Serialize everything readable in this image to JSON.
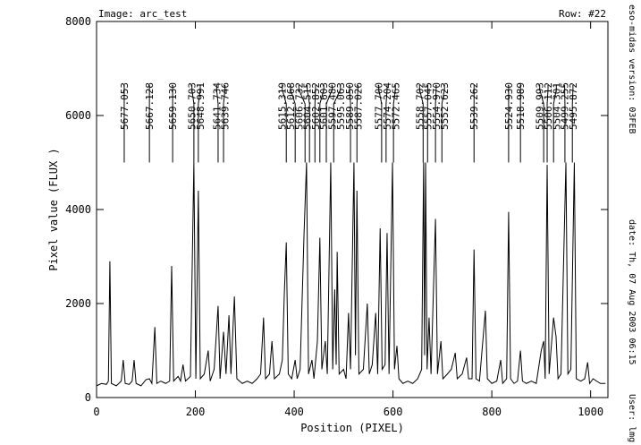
{
  "chart_data": {
    "type": "line",
    "image_label": "Image: arc_test",
    "row_label": "Row: #22",
    "xlabel": "Position (PIXEL)",
    "ylabel": "Pixel value (FLUX )",
    "side_texts": [
      "eso-midas version: 03FEB",
      "date: Th, 07 Aug 2003 06:15",
      "User: lmg"
    ],
    "color": "#000000",
    "xlim": [
      0,
      1035
    ],
    "ylim": [
      0,
      8000
    ],
    "xticks": [
      0,
      200,
      400,
      600,
      800,
      1000
    ],
    "yticks": [
      0,
      2000,
      4000,
      6000,
      8000
    ],
    "x": [
      0,
      10,
      20,
      24,
      27,
      30,
      40,
      50,
      54,
      58,
      66,
      72,
      76,
      80,
      90,
      100,
      107,
      112,
      118,
      122,
      130,
      140,
      148,
      152,
      156,
      165,
      170,
      175,
      180,
      190,
      197,
      201,
      206,
      210,
      218,
      226,
      230,
      238,
      246,
      250,
      257,
      262,
      268,
      272,
      279,
      284,
      295,
      305,
      315,
      325,
      332,
      338,
      342,
      350,
      355,
      360,
      370,
      376,
      380,
      384,
      388,
      395,
      402,
      406,
      412,
      420,
      425,
      429,
      436,
      440,
      447,
      452,
      456,
      463,
      467,
      474,
      478,
      482,
      485,
      487,
      491,
      500,
      505,
      510,
      514,
      521,
      524,
      527,
      531,
      540,
      548,
      552,
      558,
      565,
      569,
      574,
      578,
      584,
      588,
      592,
      599,
      603,
      608,
      612,
      620,
      630,
      640,
      650,
      658,
      662,
      664,
      666,
      669,
      673,
      677,
      686,
      690,
      697,
      701,
      710,
      718,
      726,
      730,
      740,
      749,
      753,
      760,
      764,
      768,
      775,
      787,
      791,
      800,
      810,
      818,
      822,
      830,
      834,
      838,
      845,
      852,
      858,
      862,
      870,
      880,
      890,
      900,
      905,
      908,
      912,
      916,
      925,
      930,
      934,
      940,
      950,
      954,
      960,
      967,
      971,
      980,
      988,
      994,
      998,
      1005,
      1012,
      1020,
      1030
    ],
    "values": [
      250,
      300,
      280,
      350,
      2900,
      300,
      250,
      350,
      800,
      300,
      280,
      350,
      800,
      300,
      250,
      380,
      400,
      300,
      1500,
      300,
      350,
      300,
      350,
      2800,
      350,
      450,
      350,
      700,
      350,
      450,
      5000,
      400,
      4400,
      400,
      500,
      1000,
      350,
      600,
      1950,
      400,
      1400,
      500,
      1750,
      500,
      2150,
      400,
      300,
      350,
      300,
      400,
      500,
      1700,
      400,
      500,
      1200,
      400,
      500,
      800,
      2200,
      3300,
      500,
      400,
      800,
      400,
      600,
      3500,
      5000,
      500,
      800,
      400,
      1200,
      3400,
      600,
      1200,
      500,
      5000,
      600,
      2300,
      700,
      3100,
      500,
      600,
      400,
      1800,
      600,
      5000,
      900,
      4400,
      500,
      600,
      2000,
      500,
      700,
      1800,
      500,
      3600,
      600,
      700,
      3500,
      500,
      5000,
      600,
      1100,
      400,
      300,
      350,
      300,
      400,
      600,
      5000,
      900,
      5000,
      600,
      1700,
      500,
      3800,
      500,
      1200,
      400,
      500,
      600,
      950,
      400,
      500,
      850,
      400,
      400,
      3150,
      400,
      350,
      1850,
      400,
      300,
      350,
      800,
      300,
      400,
      3950,
      400,
      300,
      350,
      1000,
      350,
      300,
      350,
      300,
      1000,
      1200,
      400,
      4950,
      500,
      1700,
      1300,
      400,
      500,
      5000,
      500,
      600,
      5000,
      400,
      350,
      400,
      750,
      300,
      400,
      350,
      300,
      300
    ],
    "line_ids": [
      {
        "label": "5677.053",
        "x": 56
      },
      {
        "label": "5667.128",
        "x": 107
      },
      {
        "label": "5659.130",
        "x": 154
      },
      {
        "label": "5650.703",
        "x": 197
      },
      {
        "label": "5648.991",
        "x": 206
      },
      {
        "label": "5641.734",
        "x": 246
      },
      {
        "label": "5639.746",
        "x": 257
      },
      {
        "label": "5615.319",
        "x": 384
      },
      {
        "label": "5612.068",
        "x": 402
      },
      {
        "label": "5606.732",
        "x": 422
      },
      {
        "label": "5604.515",
        "x": 431
      },
      {
        "label": "5602.852",
        "x": 442
      },
      {
        "label": "5601.603",
        "x": 452
      },
      {
        "label": "5597.480",
        "x": 465
      },
      {
        "label": "5595.063",
        "x": 480
      },
      {
        "label": "5589.050",
        "x": 514
      },
      {
        "label": "5587.026",
        "x": 527
      },
      {
        "label": "5577.700",
        "x": 577
      },
      {
        "label": "5574.204",
        "x": 586
      },
      {
        "label": "5572.465",
        "x": 601
      },
      {
        "label": "5558.702",
        "x": 661
      },
      {
        "label": "5557.045",
        "x": 670
      },
      {
        "label": "5554.970",
        "x": 686
      },
      {
        "label": "5552.623",
        "x": 699
      },
      {
        "label": "5539.262",
        "x": 764
      },
      {
        "label": "5524.930",
        "x": 834
      },
      {
        "label": "5518.989",
        "x": 858
      },
      {
        "label": "5509.993",
        "x": 905
      },
      {
        "label": "5506.112",
        "x": 912
      },
      {
        "label": "5504.301",
        "x": 925
      },
      {
        "label": "5499.255",
        "x": 948
      },
      {
        "label": "5495.872",
        "x": 963
      }
    ]
  }
}
